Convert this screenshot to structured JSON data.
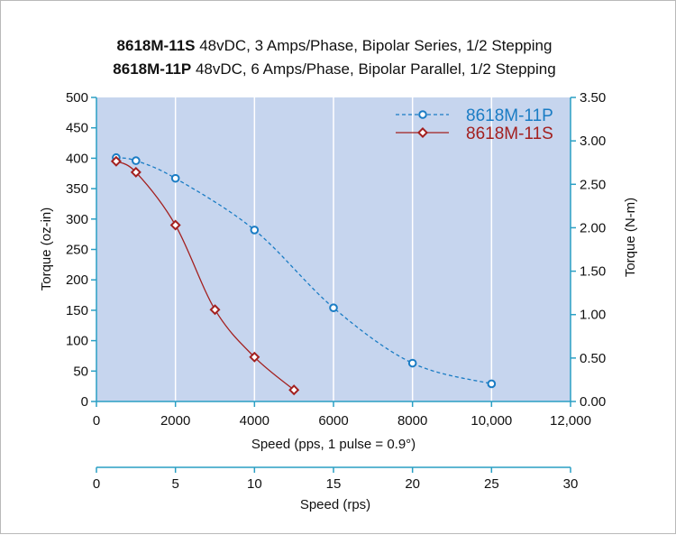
{
  "chart_data": {
    "type": "line",
    "title_lines": [
      {
        "bold": "8618M-11S",
        "rest": " 48vDC, 3 Amps/Phase, Bipolar Series, 1/2 Stepping"
      },
      {
        "bold": "8618M-11P",
        "rest": " 48vDC, 6 Amps/Phase, Bipolar Parallel, 1/2 Stepping"
      }
    ],
    "xlabel": "Speed (pps, 1 pulse = 0.9°)",
    "xlim": [
      0,
      12000
    ],
    "x_ticks": [
      0,
      2000,
      4000,
      6000,
      8000,
      10000,
      12000
    ],
    "x_tick_labels": [
      "0",
      "2000",
      "4000",
      "6000",
      "8000",
      "10,000",
      "12,000"
    ],
    "ylabel": "Torque (oz-in)",
    "ylim": [
      0,
      500
    ],
    "y_ticks": [
      0,
      50,
      100,
      150,
      200,
      250,
      300,
      350,
      400,
      450,
      500
    ],
    "y_tick_labels": [
      "0",
      "50",
      "100",
      "150",
      "200",
      "250",
      "300",
      "350",
      "400",
      "450",
      "500"
    ],
    "y2label": "Torque (N-m)",
    "y2lim": [
      0,
      3.5
    ],
    "y2_ticks": [
      0,
      0.5,
      1.0,
      1.5,
      2.0,
      2.5,
      3.0,
      3.5
    ],
    "y2_tick_labels": [
      "0.00",
      "0.50",
      "1.00",
      "1.50",
      "2.00",
      "2.50",
      "3.00",
      "3.50"
    ],
    "x2label": "Speed (rps)",
    "x2lim": [
      0,
      30
    ],
    "x2_ticks": [
      0,
      5,
      10,
      15,
      20,
      25,
      30
    ],
    "x2_tick_labels": [
      "0",
      "5",
      "10",
      "15",
      "20",
      "25",
      "30"
    ],
    "grid": true,
    "legend_position": "top-right",
    "series": [
      {
        "name": "8618M-11P",
        "color": "#1a7cc4",
        "line_style": "dashed",
        "marker": "circle",
        "x": [
          500,
          1000,
          2000,
          4000,
          6000,
          8000,
          10000
        ],
        "y": [
          401,
          396,
          367,
          282,
          154,
          63,
          29
        ]
      },
      {
        "name": "8618M-11S",
        "color": "#a3201f",
        "line_style": "solid",
        "marker": "diamond",
        "x": [
          500,
          1000,
          2000,
          3000,
          4000,
          5000
        ],
        "y": [
          395,
          377,
          290,
          151,
          73,
          19
        ]
      }
    ],
    "colors": {
      "plot_background": "#c6d5ee",
      "grid": "#ffffff",
      "axis": "#2a9fc4"
    }
  }
}
